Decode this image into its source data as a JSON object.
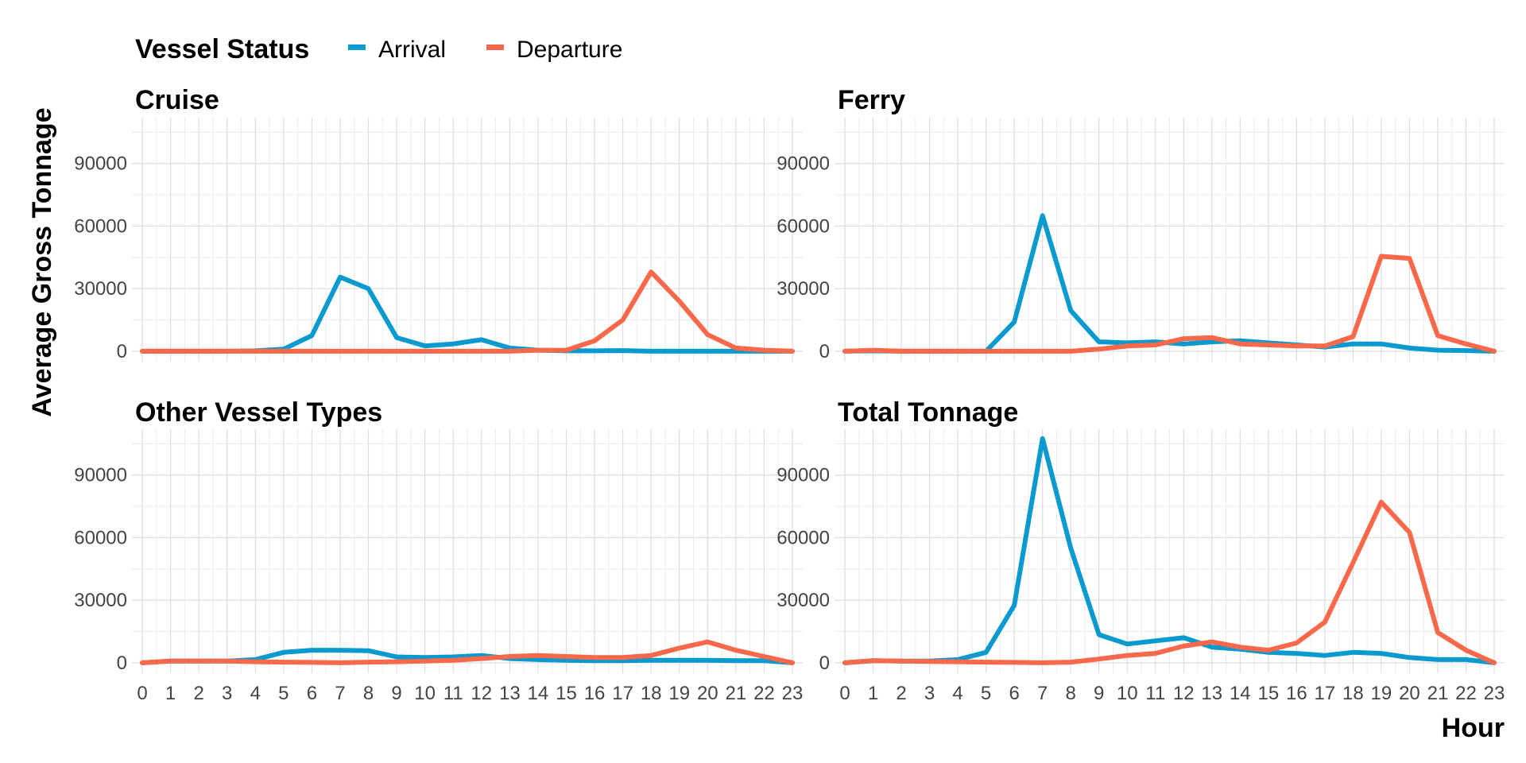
{
  "colors": {
    "arrival": "#0A9AD0",
    "departure": "#F8684A"
  },
  "chart_data": {
    "type": "line",
    "legend": {
      "title": "Vessel Status",
      "entries": [
        "Arrival",
        "Departure"
      ],
      "placement": "top-left"
    },
    "xlabel": "Hour",
    "ylabel": "Average Gross Tonnage",
    "x": [
      0,
      1,
      2,
      3,
      4,
      5,
      6,
      7,
      8,
      9,
      10,
      11,
      12,
      13,
      14,
      15,
      16,
      17,
      18,
      19,
      20,
      21,
      22,
      23
    ],
    "xlim": [
      0,
      23
    ],
    "ylim": [
      -5000,
      112000
    ],
    "y_ticks": [
      0,
      30000,
      60000,
      90000
    ],
    "grid": true,
    "panels": [
      {
        "title": "Cruise",
        "series": [
          {
            "name": "Arrival",
            "values": [
              0,
              0,
              0,
              0,
              200,
              1000,
              7500,
              35500,
              30000,
              6500,
              2500,
              3500,
              5500,
              1500,
              500,
              200,
              200,
              300,
              0,
              0,
              0,
              0,
              0,
              0
            ]
          },
          {
            "name": "Departure",
            "values": [
              0,
              0,
              0,
              0,
              0,
              0,
              0,
              0,
              0,
              0,
              0,
              0,
              0,
              0,
              500,
              500,
              5000,
              15000,
              38000,
              24000,
              8000,
              1500,
              500,
              0
            ]
          }
        ]
      },
      {
        "title": "Ferry",
        "series": [
          {
            "name": "Arrival",
            "values": [
              0,
              200,
              0,
              0,
              0,
              0,
              14000,
              65000,
              19500,
              4500,
              4000,
              4500,
              3500,
              4500,
              5000,
              4000,
              3000,
              2000,
              3500,
              3500,
              1500,
              500,
              300,
              0
            ]
          },
          {
            "name": "Departure",
            "values": [
              0,
              500,
              0,
              0,
              0,
              0,
              0,
              0,
              0,
              1000,
              2500,
              3000,
              6000,
              6500,
              3500,
              3000,
              2500,
              2500,
              7000,
              45500,
              44500,
              7500,
              3500,
              0
            ]
          }
        ]
      },
      {
        "title": "Other Vessel Types",
        "series": [
          {
            "name": "Arrival",
            "values": [
              0,
              800,
              800,
              800,
              1500,
              5000,
              6000,
              6000,
              5800,
              2800,
              2500,
              2800,
              3500,
              2000,
              1500,
              1200,
              1000,
              1000,
              1200,
              1200,
              1200,
              1000,
              1000,
              0
            ]
          },
          {
            "name": "Departure",
            "values": [
              0,
              800,
              800,
              800,
              500,
              300,
              200,
              0,
              300,
              500,
              800,
              1200,
              2000,
              3000,
              3500,
              3000,
              2500,
              2500,
              3500,
              7000,
              10000,
              6000,
              3000,
              0
            ]
          }
        ]
      },
      {
        "title": "Total Tonnage",
        "series": [
          {
            "name": "Arrival",
            "values": [
              0,
              1000,
              800,
              800,
              1500,
              5000,
              27500,
              107500,
              55000,
              13500,
              9000,
              10500,
              12000,
              7500,
              6500,
              5000,
              4500,
              3500,
              5000,
              4500,
              2500,
              1500,
              1500,
              0
            ]
          },
          {
            "name": "Departure",
            "values": [
              0,
              1000,
              800,
              600,
              500,
              300,
              200,
              0,
              300,
              1800,
              3500,
              4500,
              8000,
              10000,
              7500,
              6000,
              9500,
              19500,
              48000,
              77000,
              62500,
              14500,
              6000,
              0
            ]
          }
        ]
      }
    ]
  }
}
